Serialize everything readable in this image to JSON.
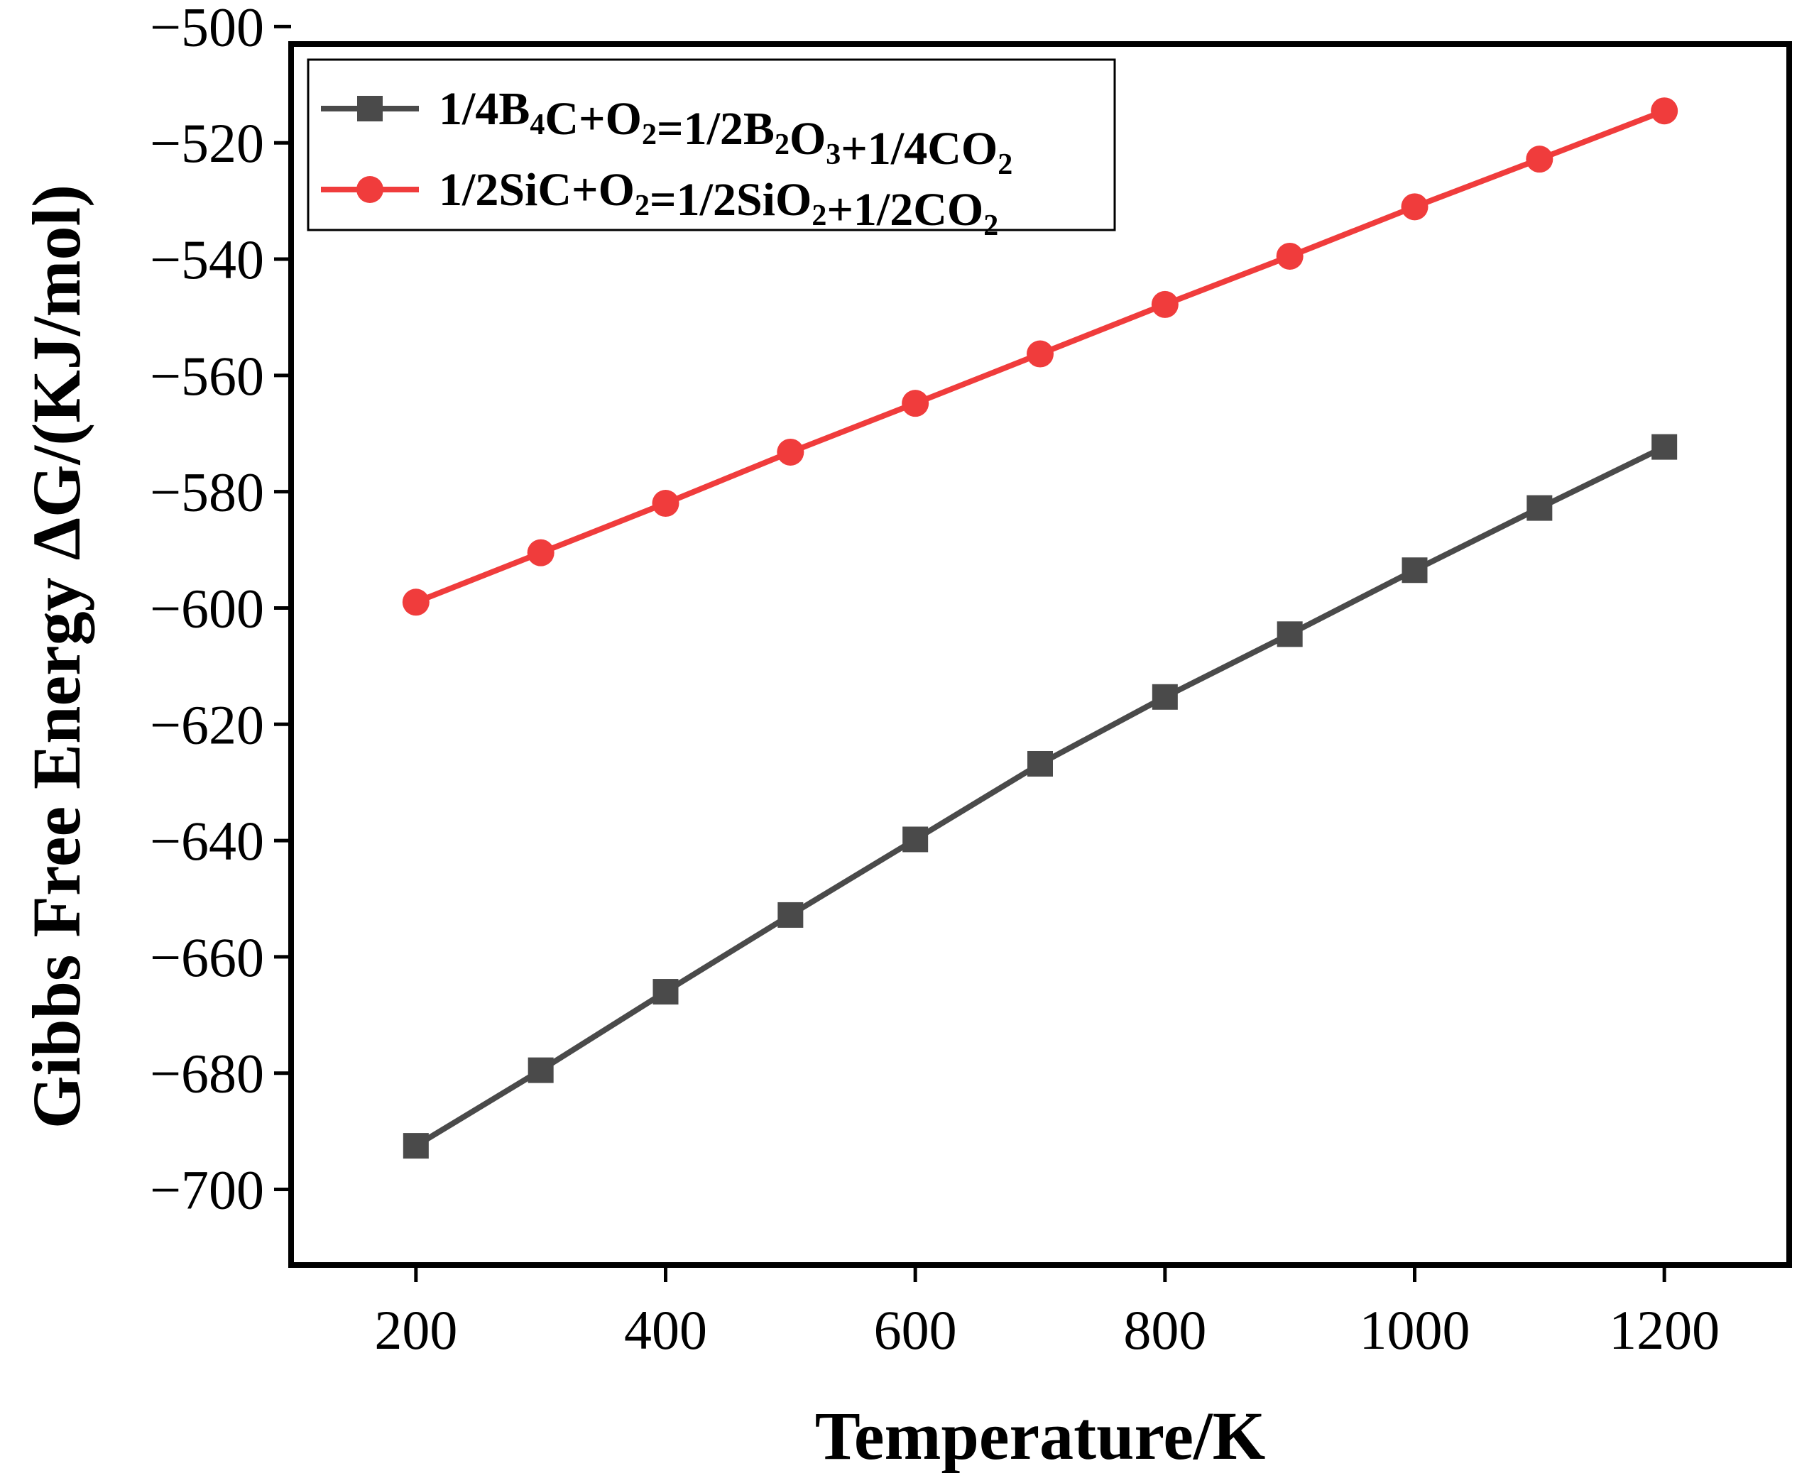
{
  "chart_data": {
    "type": "line",
    "title": "",
    "xlabel": "Temperature/K",
    "ylabel": "Gibbs Free Energy ΔG/(KJ/mol)",
    "xlim": [
      100,
      1300
    ],
    "ylim": [
      -710,
      -500
    ],
    "xticks": [
      200,
      400,
      600,
      800,
      1000,
      1200
    ],
    "yticks": [
      -500,
      -520,
      -540,
      -560,
      -580,
      -600,
      -620,
      -640,
      -660,
      -680,
      -700
    ],
    "x": [
      200,
      300,
      400,
      500,
      600,
      700,
      800,
      900,
      1000,
      1100,
      1200
    ],
    "legend_position": "top-left",
    "series": [
      {
        "name": "1/4B4C+O2=1/2B2O3+1/4CO2",
        "legend_parts": [
          {
            "t": "1/4B",
            "sub": false
          },
          {
            "t": "4",
            "sub": true
          },
          {
            "t": "C+O",
            "sub": false
          },
          {
            "t": "2",
            "sub": true
          },
          {
            "t": "=1/2B",
            "sub": false
          },
          {
            "t": "2",
            "sub": true
          },
          {
            "t": "O",
            "sub": false
          },
          {
            "t": "3",
            "sub": true
          },
          {
            "t": "+1/4CO",
            "sub": false
          },
          {
            "t": "2",
            "sub": true
          }
        ],
        "color": "#4a4a4a",
        "marker": "square",
        "values": [
          -692.5,
          -679.5,
          -666.0,
          -652.8,
          -639.8,
          -626.8,
          -615.3,
          -604.5,
          -593.5,
          -582.8,
          -572.3
        ]
      },
      {
        "name": "1/2SiC+O2=1/2SiO2+1/2CO2",
        "legend_parts": [
          {
            "t": "1/2SiC+O",
            "sub": false
          },
          {
            "t": "2",
            "sub": true
          },
          {
            "t": "=1/2SiO",
            "sub": false
          },
          {
            "t": "2",
            "sub": true
          },
          {
            "t": "+1/2CO",
            "sub": false
          },
          {
            "t": "2",
            "sub": true
          }
        ],
        "color": "#f03c3c",
        "marker": "circle",
        "values": [
          -599.0,
          -590.5,
          -582.0,
          -573.2,
          -564.8,
          -556.3,
          -547.8,
          -539.5,
          -531.0,
          -522.8,
          -514.5
        ]
      }
    ]
  }
}
